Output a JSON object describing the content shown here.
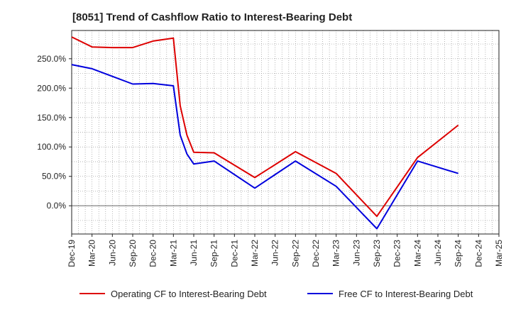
{
  "chart_data": {
    "type": "line",
    "title": "[8051]  Trend of Cashflow Ratio to Interest-Bearing Debt",
    "xlabel": "",
    "ylabel": "",
    "x_ticks": [
      "Dec-19",
      "Mar-20",
      "Jun-20",
      "Sep-20",
      "Dec-20",
      "Mar-21",
      "Jun-21",
      "Sep-21",
      "Dec-21",
      "Mar-22",
      "Jun-22",
      "Sep-22",
      "Dec-22",
      "Mar-23",
      "Jun-23",
      "Sep-23",
      "Dec-23",
      "Mar-24",
      "Jun-24",
      "Sep-24",
      "Dec-24",
      "Mar-25"
    ],
    "y_ticks": [
      "0.0%",
      "50.0%",
      "100.0%",
      "150.0%",
      "200.0%",
      "250.0%"
    ],
    "y_tick_values": [
      0,
      50,
      100,
      150,
      200,
      250
    ],
    "ylim": [
      -48,
      298
    ],
    "grid": true,
    "legend_position": "bottom",
    "series": [
      {
        "name": "Operating CF to Interest-Bearing Debt",
        "color": "#dd0000",
        "points": [
          {
            "x": "Dec-19",
            "y": 287
          },
          {
            "x": "Mar-20",
            "y": 270
          },
          {
            "x": "Jun-20",
            "y": 269
          },
          {
            "x": "Sep-20",
            "y": 269
          },
          {
            "x": "Dec-20",
            "y": 280
          },
          {
            "x": "Mar-21",
            "y": 285
          },
          {
            "x": "Apr-21",
            "y": 170
          },
          {
            "x": "May-21",
            "y": 120
          },
          {
            "x": "Jun-21",
            "y": 91
          },
          {
            "x": "Sep-21",
            "y": 90
          },
          {
            "x": "Mar-22",
            "y": 48
          },
          {
            "x": "Sep-22",
            "y": 92
          },
          {
            "x": "Mar-23",
            "y": 55
          },
          {
            "x": "Sep-23",
            "y": -18
          },
          {
            "x": "Mar-24",
            "y": 82
          },
          {
            "x": "Sep-24",
            "y": 137
          }
        ]
      },
      {
        "name": "Free CF to Interest-Bearing Debt",
        "color": "#0000dd",
        "points": [
          {
            "x": "Dec-19",
            "y": 240
          },
          {
            "x": "Mar-20",
            "y": 233
          },
          {
            "x": "Jun-20",
            "y": 220
          },
          {
            "x": "Sep-20",
            "y": 207
          },
          {
            "x": "Dec-20",
            "y": 208
          },
          {
            "x": "Mar-21",
            "y": 204
          },
          {
            "x": "Apr-21",
            "y": 120
          },
          {
            "x": "May-21",
            "y": 88
          },
          {
            "x": "Jun-21",
            "y": 71
          },
          {
            "x": "Sep-21",
            "y": 76
          },
          {
            "x": "Mar-22",
            "y": 30
          },
          {
            "x": "Sep-22",
            "y": 76
          },
          {
            "x": "Mar-23",
            "y": 33
          },
          {
            "x": "Sep-23",
            "y": -39
          },
          {
            "x": "Mar-24",
            "y": 76
          },
          {
            "x": "Sep-24",
            "y": 55
          }
        ]
      }
    ]
  }
}
